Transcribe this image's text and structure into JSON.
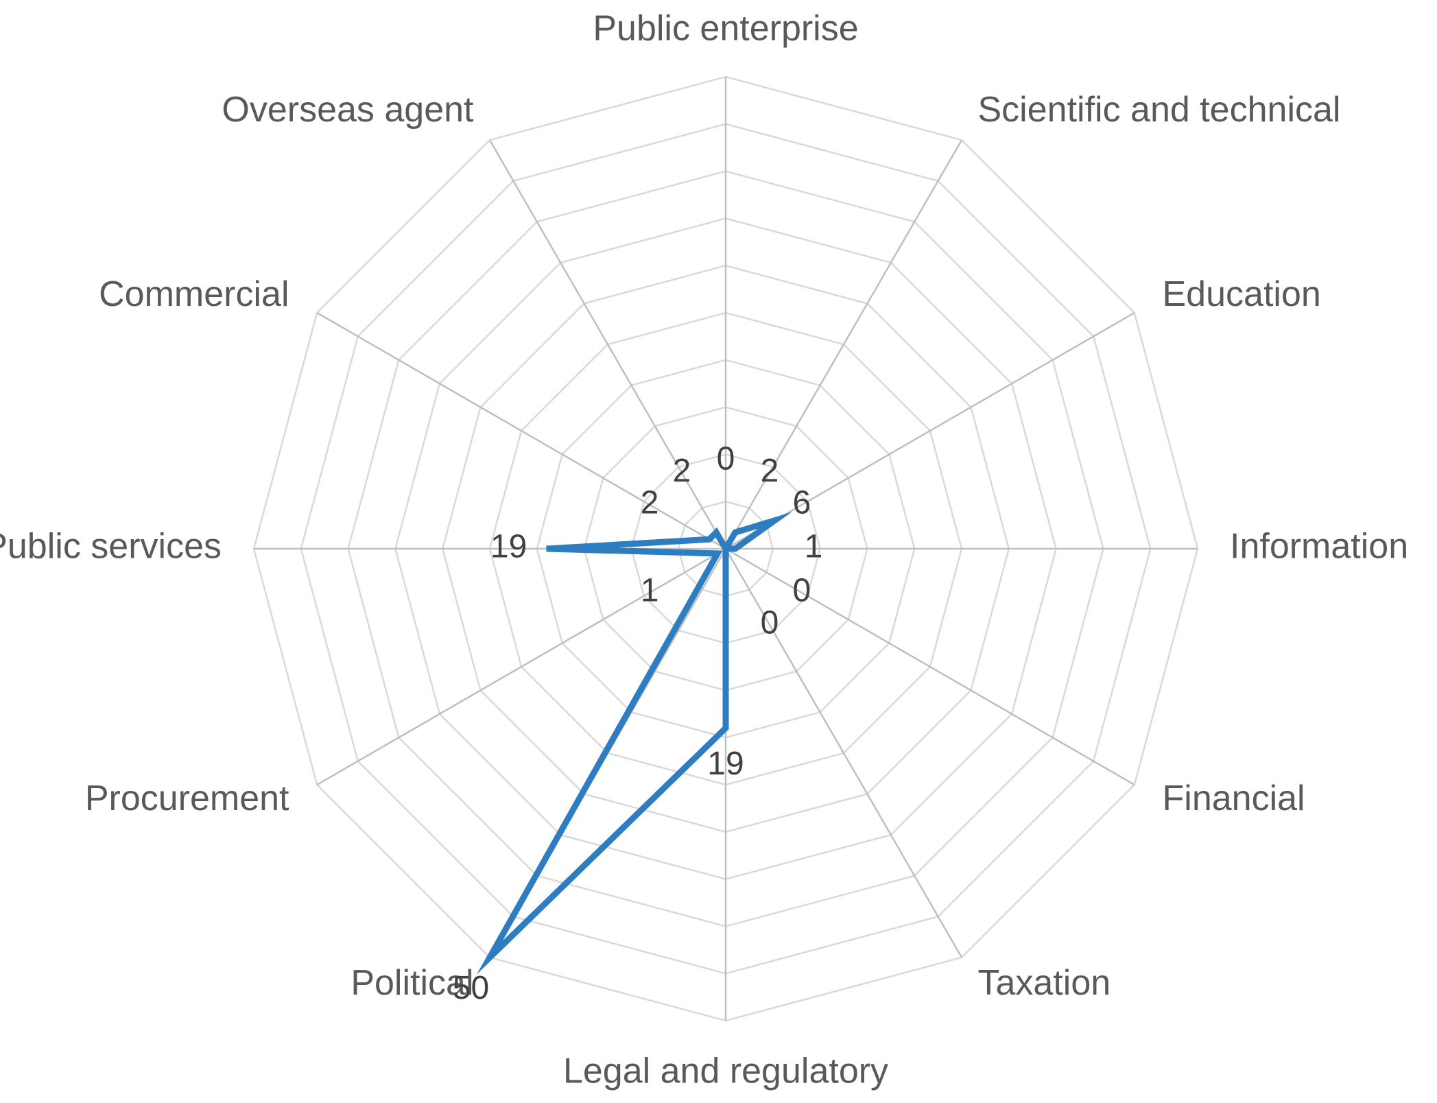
{
  "chart_data": {
    "type": "radar",
    "title": "",
    "categories": [
      "Public enterprise",
      "Scientific and technical",
      "Education",
      "Information",
      "Financial",
      "Taxation",
      "Legal and regulatory",
      "Political",
      "Procurement",
      "Public services",
      "Commercial",
      "Overseas agent"
    ],
    "series": [
      {
        "values": [
          0,
          2,
          6,
          1,
          0,
          0,
          19,
          50,
          1,
          19,
          2,
          2
        ],
        "color": "#2e7dc0"
      }
    ],
    "rlim": [
      0,
      50
    ],
    "grid_rings": 10,
    "grid": true,
    "legend": "none"
  }
}
